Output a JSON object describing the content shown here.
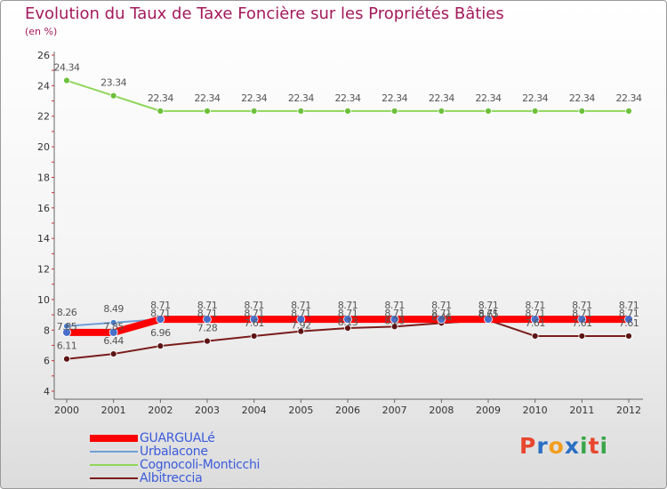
{
  "header": {
    "title": "Evolution du Taux de Taxe Foncière sur les Propriétés Bâties",
    "subtitle": "(en %)"
  },
  "logo": {
    "letters": [
      "P",
      "r",
      "o",
      "x",
      "i",
      "t",
      "i"
    ]
  },
  "colors": {
    "title": "#a3195b",
    "legend_text": "#3b5bdb",
    "GUARGUALé": "#ff0000",
    "Urbalacone": "#6f9fd8",
    "Cognocoli-Monticchi": "#8fd65a",
    "Albitreccia": "#7a1c1c",
    "logo": [
      "#e8462d",
      "#2b6fc4",
      "#f29d1d",
      "#2b6fc4",
      "#3aa64a",
      "#e8462d",
      "#3aa64a"
    ]
  },
  "chart_data": {
    "type": "line",
    "x": [
      "2000",
      "2001",
      "2002",
      "2003",
      "2004",
      "2005",
      "2006",
      "2007",
      "2008",
      "2009",
      "2010",
      "2011",
      "2012"
    ],
    "ylim": [
      4,
      26
    ],
    "yticks": [
      4,
      6,
      8,
      10,
      12,
      14,
      16,
      18,
      20,
      22,
      24,
      26
    ],
    "grid": false,
    "legend_position": "bottom-left",
    "series": [
      {
        "name": "GUARGUALé",
        "values": [
          7.85,
          7.85,
          8.71,
          8.71,
          8.71,
          8.71,
          8.71,
          8.71,
          8.71,
          8.71,
          8.71,
          8.71,
          8.71
        ],
        "labels": [
          "7.85",
          "7.85",
          "8.71",
          "8.71",
          "8.71",
          "8.71",
          "8.71",
          "8.71",
          "8.71",
          "8.71",
          "8.71",
          "8.71",
          "8.71"
        ]
      },
      {
        "name": "Urbalacone",
        "values": [
          8.26,
          8.49,
          8.71,
          8.71,
          8.71,
          8.71,
          8.71,
          8.71,
          8.71,
          8.71,
          8.71,
          8.71,
          8.71
        ],
        "labels": [
          "8.26",
          "8.49",
          "8.71",
          "8.71",
          "8.71",
          "8.71",
          "8.71",
          "8.71",
          "8.71",
          "8.71",
          "8.71",
          "8.71",
          "8.71"
        ]
      },
      {
        "name": "Cognocoli-Monticchi",
        "values": [
          24.34,
          23.34,
          22.34,
          22.34,
          22.34,
          22.34,
          22.34,
          22.34,
          22.34,
          22.34,
          22.34,
          22.34,
          22.34
        ],
        "labels": [
          "24.34",
          "23.34",
          "22.34",
          "22.34",
          "22.34",
          "22.34",
          "22.34",
          "22.34",
          "22.34",
          "22.34",
          "22.34",
          "22.34",
          "22.34"
        ]
      },
      {
        "name": "Albitreccia",
        "values": [
          6.11,
          6.44,
          6.96,
          7.28,
          7.61,
          7.92,
          8.13,
          8.23,
          8.46,
          8.65,
          7.61,
          7.61,
          7.61
        ],
        "labels": [
          "6.11",
          "6.44",
          "6.96",
          "7.28",
          "7.61",
          "7.92",
          "8.13",
          "8.23",
          "8.46",
          "8.65",
          "7.61",
          "7.61",
          "7.61"
        ]
      }
    ]
  }
}
